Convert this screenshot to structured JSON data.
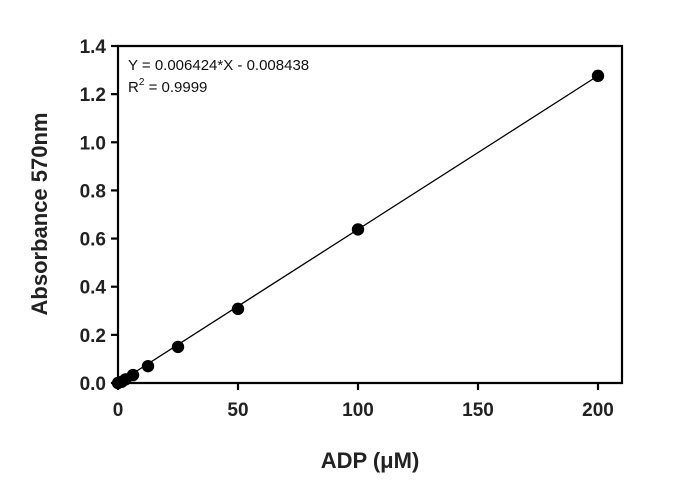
{
  "chart_data": {
    "type": "scatter",
    "xlabel": "ADP (μM)",
    "ylabel": "Absorbance 570nm",
    "xlim": [
      0,
      210
    ],
    "ylim": [
      0,
      1.4
    ],
    "x_ticks": [
      0,
      50,
      100,
      150,
      200
    ],
    "y_ticks": [
      0.0,
      0.2,
      0.4,
      0.6,
      0.8,
      1.0,
      1.2,
      1.4
    ],
    "x_tick_labels": [
      "0",
      "50",
      "100",
      "150",
      "200"
    ],
    "y_tick_labels": [
      "0.0",
      "0.2",
      "0.4",
      "0.6",
      "0.8",
      "1.0",
      "1.2",
      "1.4"
    ],
    "grid": false,
    "series": [
      {
        "x": [
          0,
          1.5625,
          3.125,
          6.25,
          12.5,
          25,
          50,
          100,
          200
        ],
        "y": [
          0.0,
          0.005,
          0.015,
          0.033,
          0.07,
          0.15,
          0.308,
          0.638,
          1.276
        ]
      }
    ],
    "fit": {
      "slope": 0.006424,
      "intercept": -0.008438,
      "equation_text": "Y = 0.006424*X - 0.008438",
      "r2_label": "R",
      "r2_sup": "2",
      "r2_value_text": " = 0.9999"
    }
  }
}
